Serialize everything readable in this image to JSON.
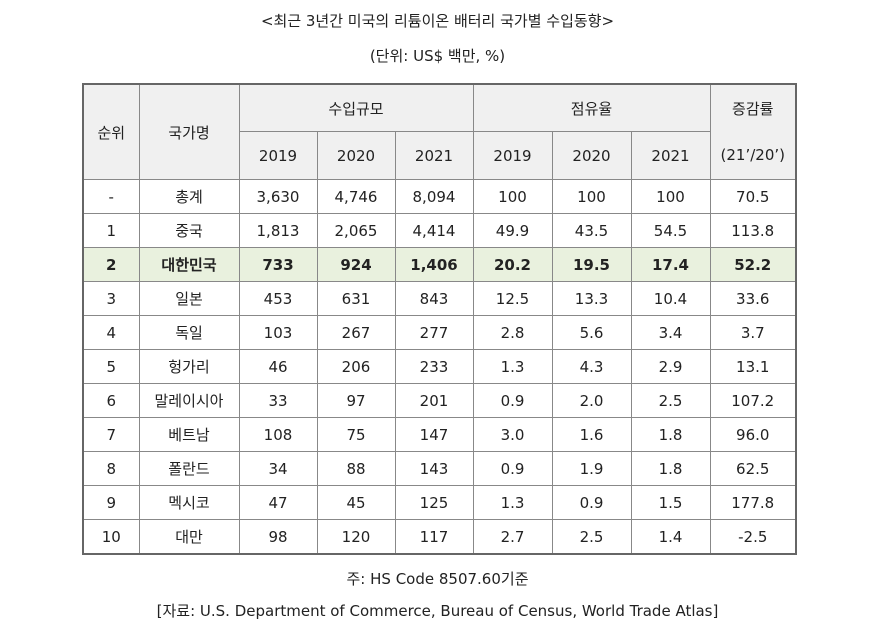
{
  "title": "<최근 3년간 미국의 리튬이온 배터리 국가별 수입동향>",
  "unit": "(단위: US$ 백만, %)",
  "headers": {
    "rank": "순위",
    "country": "국가명",
    "import_scale": "수입규모",
    "share": "점유율",
    "change": "증감률",
    "change_sub": "(21’/20’)",
    "years": [
      "2019",
      "2020",
      "2021"
    ]
  },
  "rows": [
    {
      "rank": "-",
      "country": "총계",
      "i2019": "3,630",
      "i2020": "4,746",
      "i2021": "8,094",
      "s2019": "100",
      "s2020": "100",
      "s2021": "100",
      "chg": "70.5"
    },
    {
      "rank": "1",
      "country": "중국",
      "i2019": "1,813",
      "i2020": "2,065",
      "i2021": "4,414",
      "s2019": "49.9",
      "s2020": "43.5",
      "s2021": "54.5",
      "chg": "113.8"
    },
    {
      "rank": "2",
      "country": "대한민국",
      "i2019": "733",
      "i2020": "924",
      "i2021": "1,406",
      "s2019": "20.2",
      "s2020": "19.5",
      "s2021": "17.4",
      "chg": "52.2"
    },
    {
      "rank": "3",
      "country": "일본",
      "i2019": "453",
      "i2020": "631",
      "i2021": "843",
      "s2019": "12.5",
      "s2020": "13.3",
      "s2021": "10.4",
      "chg": "33.6"
    },
    {
      "rank": "4",
      "country": "독일",
      "i2019": "103",
      "i2020": "267",
      "i2021": "277",
      "s2019": "2.8",
      "s2020": "5.6",
      "s2021": "3.4",
      "chg": "3.7"
    },
    {
      "rank": "5",
      "country": "헝가리",
      "i2019": "46",
      "i2020": "206",
      "i2021": "233",
      "s2019": "1.3",
      "s2020": "4.3",
      "s2021": "2.9",
      "chg": "13.1"
    },
    {
      "rank": "6",
      "country": "말레이시아",
      "i2019": "33",
      "i2020": "97",
      "i2021": "201",
      "s2019": "0.9",
      "s2020": "2.0",
      "s2021": "2.5",
      "chg": "107.2"
    },
    {
      "rank": "7",
      "country": "베트남",
      "i2019": "108",
      "i2020": "75",
      "i2021": "147",
      "s2019": "3.0",
      "s2020": "1.6",
      "s2021": "1.8",
      "chg": "96.0"
    },
    {
      "rank": "8",
      "country": "폴란드",
      "i2019": "34",
      "i2020": "88",
      "i2021": "143",
      "s2019": "0.9",
      "s2020": "1.9",
      "s2021": "1.8",
      "chg": "62.5"
    },
    {
      "rank": "9",
      "country": "멕시코",
      "i2019": "47",
      "i2020": "45",
      "i2021": "125",
      "s2019": "1.3",
      "s2020": "0.9",
      "s2021": "1.5",
      "chg": "177.8"
    },
    {
      "rank": "10",
      "country": "대만",
      "i2019": "98",
      "i2020": "120",
      "i2021": "117",
      "s2019": "2.7",
      "s2020": "2.5",
      "s2021": "1.4",
      "chg": "-2.5"
    }
  ],
  "highlight_row": 2,
  "highlight_color": "#e9f1de",
  "note": "주: HS Code 8507.60기준",
  "source": "[자료: U.S. Department of Commerce, Bureau of Census, World Trade Atlas]"
}
